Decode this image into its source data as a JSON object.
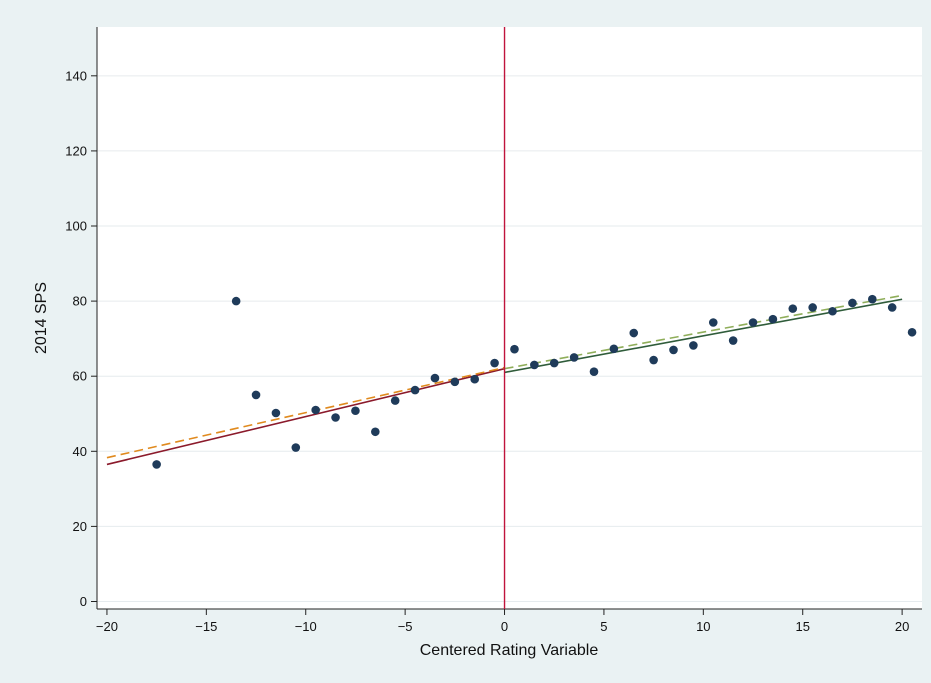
{
  "chart_data": {
    "type": "scatter",
    "title": "",
    "xlabel": "Centered Rating Variable",
    "ylabel": "2014 SPS",
    "xlim": [
      -20.5,
      21
    ],
    "ylim": [
      -2,
      153
    ],
    "xticks": [
      -20,
      -15,
      -10,
      -5,
      0,
      5,
      10,
      15,
      20
    ],
    "xtick_labels": [
      "−20",
      "−15",
      "−10",
      "−5",
      "0",
      "5",
      "10",
      "15",
      "20"
    ],
    "yticks": [
      0,
      20,
      40,
      60,
      80,
      100,
      120,
      140
    ],
    "ytick_labels": [
      "0",
      "20",
      "40",
      "60",
      "80",
      "100",
      "120",
      "140"
    ],
    "grid": "horizontal",
    "legend": "none",
    "colors": {
      "outer_background": "#eaf2f3",
      "plot_background": "#ffffff",
      "points": "#1f3b5a",
      "cutoff_line": "#c0143c",
      "fit_left_solid": "#8b1a2b",
      "fit_left_dashed": "#e08a1e",
      "fit_right_solid": "#2f5c3a",
      "fit_right_dashed": "#8fae5a",
      "grid": "#e6ebee"
    },
    "cutoff_x": 0,
    "points": [
      {
        "x": -17.5,
        "y": 36.5
      },
      {
        "x": -13.5,
        "y": 80
      },
      {
        "x": -12.5,
        "y": 55
      },
      {
        "x": -11.5,
        "y": 50.2
      },
      {
        "x": -10.5,
        "y": 41
      },
      {
        "x": -9.5,
        "y": 51
      },
      {
        "x": -8.5,
        "y": 49
      },
      {
        "x": -7.5,
        "y": 50.8
      },
      {
        "x": -6.5,
        "y": 45.2
      },
      {
        "x": -5.5,
        "y": 53.5
      },
      {
        "x": -4.5,
        "y": 56.3
      },
      {
        "x": -3.5,
        "y": 59.5
      },
      {
        "x": -2.5,
        "y": 58.5
      },
      {
        "x": -1.5,
        "y": 59.2
      },
      {
        "x": -0.5,
        "y": 63.5
      },
      {
        "x": 0.5,
        "y": 67.2
      },
      {
        "x": 1.5,
        "y": 63
      },
      {
        "x": 2.5,
        "y": 63.5
      },
      {
        "x": 3.5,
        "y": 65
      },
      {
        "x": 4.5,
        "y": 61.2
      },
      {
        "x": 5.5,
        "y": 67.3
      },
      {
        "x": 6.5,
        "y": 71.5
      },
      {
        "x": 7.5,
        "y": 64.3
      },
      {
        "x": 8.5,
        "y": 67
      },
      {
        "x": 9.5,
        "y": 68.2
      },
      {
        "x": 10.5,
        "y": 74.3
      },
      {
        "x": 11.5,
        "y": 69.5
      },
      {
        "x": 12.5,
        "y": 74.3
      },
      {
        "x": 13.5,
        "y": 75.2
      },
      {
        "x": 14.5,
        "y": 78
      },
      {
        "x": 15.5,
        "y": 78.3
      },
      {
        "x": 16.5,
        "y": 77.3
      },
      {
        "x": 17.5,
        "y": 79.5
      },
      {
        "x": 18.5,
        "y": 80.5
      },
      {
        "x": 19.5,
        "y": 78.3
      },
      {
        "x": 20.5,
        "y": 71.7
      }
    ],
    "fit_lines": [
      {
        "side": "left",
        "style": "solid",
        "color": "#8b1a2b",
        "x": [
          -20,
          0
        ],
        "y": [
          36.5,
          62
        ]
      },
      {
        "side": "left",
        "style": "dashed",
        "color": "#e08a1e",
        "x": [
          -20,
          0
        ],
        "y": [
          38.3,
          62.3
        ]
      },
      {
        "side": "right",
        "style": "solid",
        "color": "#2f5c3a",
        "x": [
          0,
          20
        ],
        "y": [
          61,
          80.5
        ]
      },
      {
        "side": "right",
        "style": "dashed",
        "color": "#8fae5a",
        "x": [
          0,
          20
        ],
        "y": [
          62,
          81.5
        ]
      }
    ]
  }
}
